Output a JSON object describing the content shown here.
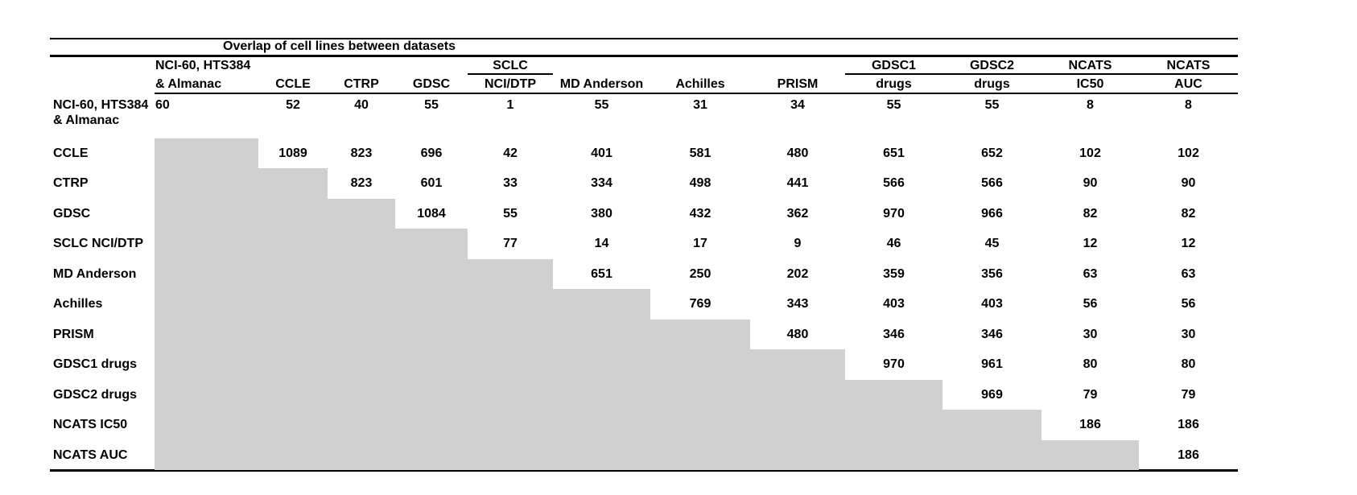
{
  "table": {
    "caption": "Overlap of cell lines between datasets",
    "columns": [
      {
        "top": "NCI-60, HTS384",
        "bottom": "& Almanac",
        "spanner_underline": false,
        "align": "left"
      },
      {
        "top": "",
        "bottom": "CCLE",
        "spanner_underline": false,
        "align": "center"
      },
      {
        "top": "",
        "bottom": "CTRP",
        "spanner_underline": false,
        "align": "center"
      },
      {
        "top": "",
        "bottom": "GDSC",
        "spanner_underline": false,
        "align": "center"
      },
      {
        "top": "SCLC",
        "bottom": "NCI/DTP",
        "spanner_underline": true,
        "align": "center"
      },
      {
        "top": "",
        "bottom": "MD Anderson",
        "spanner_underline": false,
        "align": "center"
      },
      {
        "top": "",
        "bottom": "Achilles",
        "spanner_underline": false,
        "align": "center"
      },
      {
        "top": "",
        "bottom": "PRISM",
        "spanner_underline": false,
        "align": "center"
      },
      {
        "top": "GDSC1",
        "bottom": "drugs",
        "spanner_underline": true,
        "align": "center"
      },
      {
        "top": "GDSC2",
        "bottom": "drugs",
        "spanner_underline": true,
        "align": "center"
      },
      {
        "top": "NCATS",
        "bottom": "IC50",
        "spanner_underline": true,
        "align": "center"
      },
      {
        "top": "NCATS",
        "bottom": "AUC",
        "spanner_underline": true,
        "align": "center"
      }
    ],
    "rows": [
      {
        "label": "NCI-60, HTS384 & Almanac",
        "label_lines": [
          "NCI-60, HTS384",
          "& Almanac"
        ],
        "values": [
          "60",
          "52",
          "40",
          "55",
          "1",
          "55",
          "31",
          "34",
          "55",
          "55",
          "8",
          "8"
        ]
      },
      {
        "label": "CCLE",
        "values": [
          null,
          "1089",
          "823",
          "696",
          "42",
          "401",
          "581",
          "480",
          "651",
          "652",
          "102",
          "102"
        ]
      },
      {
        "label": "CTRP",
        "values": [
          null,
          null,
          "823",
          "601",
          "33",
          "334",
          "498",
          "441",
          "566",
          "566",
          "90",
          "90"
        ]
      },
      {
        "label": "GDSC",
        "values": [
          null,
          null,
          null,
          "1084",
          "55",
          "380",
          "432",
          "362",
          "970",
          "966",
          "82",
          "82"
        ]
      },
      {
        "label": "SCLC NCI/DTP",
        "values": [
          null,
          null,
          null,
          null,
          "77",
          "14",
          "17",
          "9",
          "46",
          "45",
          "12",
          "12"
        ]
      },
      {
        "label": "MD Anderson",
        "values": [
          null,
          null,
          null,
          null,
          null,
          "651",
          "250",
          "202",
          "359",
          "356",
          "63",
          "63"
        ]
      },
      {
        "label": "Achilles",
        "values": [
          null,
          null,
          null,
          null,
          null,
          null,
          "769",
          "343",
          "403",
          "403",
          "56",
          "56"
        ]
      },
      {
        "label": "PRISM",
        "values": [
          null,
          null,
          null,
          null,
          null,
          null,
          null,
          "480",
          "346",
          "346",
          "30",
          "30"
        ]
      },
      {
        "label": "GDSC1 drugs",
        "values": [
          null,
          null,
          null,
          null,
          null,
          null,
          null,
          null,
          "970",
          "961",
          "80",
          "80"
        ]
      },
      {
        "label": "GDSC2 drugs",
        "values": [
          null,
          null,
          null,
          null,
          null,
          null,
          null,
          null,
          null,
          "969",
          "79",
          "79"
        ]
      },
      {
        "label": "NCATS IC50",
        "values": [
          null,
          null,
          null,
          null,
          null,
          null,
          null,
          null,
          null,
          null,
          "186",
          "186"
        ]
      },
      {
        "label": "NCATS AUC",
        "values": [
          null,
          null,
          null,
          null,
          null,
          null,
          null,
          null,
          null,
          null,
          null,
          "186"
        ]
      }
    ],
    "colors": {
      "lower_triangle_fill": "#d0d0d0",
      "text": "#000000",
      "rule": "#000000",
      "background": "#ffffff"
    }
  }
}
